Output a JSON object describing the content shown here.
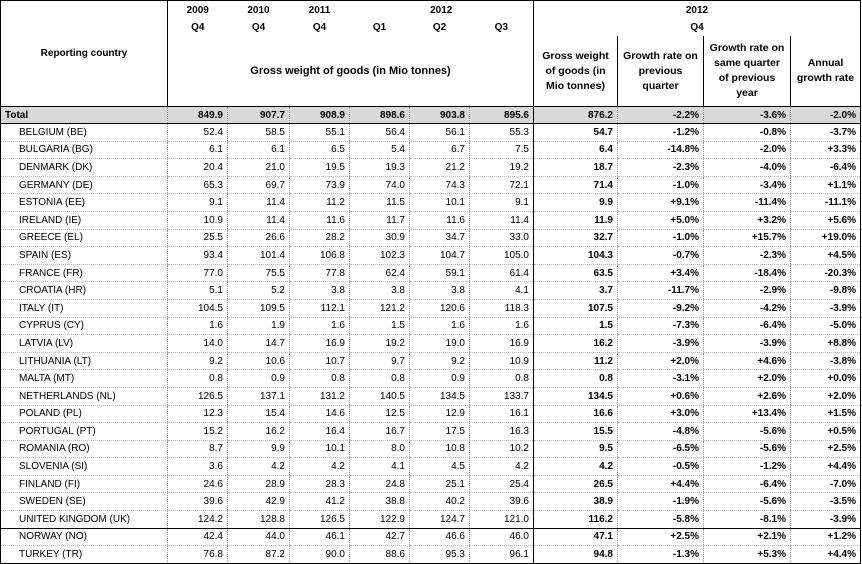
{
  "header": {
    "years": [
      "2009",
      "2010",
      "2011",
      "2012"
    ],
    "quarters": [
      "Q4",
      "Q4",
      "Q4",
      "Q1",
      "Q2",
      "Q3"
    ],
    "year2012b": "2012",
    "q4": "Q4",
    "reporting_country": "Reporting country",
    "gross_weight": "Gross weight of goods (in Mio tonnes)",
    "col_gross": "Gross weight of goods (in Mio tonnes)",
    "col_growth_prev": "Growth rate on previous quarter",
    "col_growth_same": "Growth rate on same quarter of previous year",
    "col_annual": "Annual growth rate"
  },
  "total": {
    "label": "Total",
    "v": [
      "849.9",
      "907.7",
      "908.9",
      "898.6",
      "903.8",
      "895.6",
      "876.2",
      "-2.2%",
      "-3.6%",
      "-2.0%"
    ]
  },
  "rows": [
    {
      "label": "BELGIUM (BE)",
      "v": [
        "52.4",
        "58.5",
        "55.1",
        "56.4",
        "56.1",
        "55.3",
        "54.7",
        "-1.2%",
        "-0.8%",
        "-3.7%"
      ]
    },
    {
      "label": "BULGARIA (BG)",
      "v": [
        "6.1",
        "6.1",
        "6.5",
        "5.4",
        "6.7",
        "7.5",
        "6.4",
        "-14.8%",
        "-2.0%",
        "+3.3%"
      ]
    },
    {
      "label": "DENMARK (DK)",
      "v": [
        "20.4",
        "21.0",
        "19.5",
        "19.3",
        "21.2",
        "19.2",
        "18.7",
        "-2.3%",
        "-4.0%",
        "-6.4%"
      ]
    },
    {
      "label": "GERMANY (DE)",
      "v": [
        "65.3",
        "69.7",
        "73.9",
        "74.0",
        "74.3",
        "72.1",
        "71.4",
        "-1.0%",
        "-3.4%",
        "+1.1%"
      ]
    },
    {
      "label": "ESTONIA (EE)",
      "v": [
        "9.1",
        "11.4",
        "11.2",
        "11.5",
        "10.1",
        "9.1",
        "9.9",
        "+9.1%",
        "-11.4%",
        "-11.1%"
      ]
    },
    {
      "label": "IRELAND (IE)",
      "v": [
        "10.9",
        "11.4",
        "11.6",
        "11.7",
        "11.6",
        "11.4",
        "11.9",
        "+5.0%",
        "+3.2%",
        "+5.6%"
      ]
    },
    {
      "label": "GREECE (EL)",
      "v": [
        "25.5",
        "26.6",
        "28.2",
        "30.9",
        "34.7",
        "33.0",
        "32.7",
        "-1.0%",
        "+15.7%",
        "+19.0%"
      ]
    },
    {
      "label": "SPAIN (ES)",
      "v": [
        "93.4",
        "101.4",
        "106.8",
        "102.3",
        "104.7",
        "105.0",
        "104.3",
        "-0.7%",
        "-2.3%",
        "+4.5%"
      ]
    },
    {
      "label": "FRANCE (FR)",
      "v": [
        "77.0",
        "75.5",
        "77.8",
        "62.4",
        "59.1",
        "61.4",
        "63.5",
        "+3.4%",
        "-18.4%",
        "-20.3%"
      ]
    },
    {
      "label": "CROATIA (HR)",
      "v": [
        "5.1",
        "5.2",
        "3.8",
        "3.8",
        "3.8",
        "4.1",
        "3.7",
        "-11.7%",
        "-2.9%",
        "-9.8%"
      ]
    },
    {
      "label": "ITALY (IT)",
      "v": [
        "104.5",
        "109.5",
        "112.1",
        "121.2",
        "120.6",
        "118.3",
        "107.5",
        "-9.2%",
        "-4.2%",
        "-3.9%"
      ]
    },
    {
      "label": "CYPRUS (CY)",
      "v": [
        "1.6",
        "1.9",
        "1.6",
        "1.5",
        "1.6",
        "1.6",
        "1.5",
        "-7.3%",
        "-6.4%",
        "-5.0%"
      ]
    },
    {
      "label": "LATVIA (LV)",
      "v": [
        "14.0",
        "14.7",
        "16.9",
        "19.2",
        "19.0",
        "16.9",
        "16.2",
        "-3.9%",
        "-3.9%",
        "+8.8%"
      ]
    },
    {
      "label": "LITHUANIA (LT)",
      "v": [
        "9.2",
        "10.6",
        "10.7",
        "9.7",
        "9.2",
        "10.9",
        "11.2",
        "+2.0%",
        "+4.6%",
        "-3.8%"
      ]
    },
    {
      "label": "MALTA (MT)",
      "v": [
        "0.8",
        "0.9",
        "0.8",
        "0.8",
        "0.9",
        "0.8",
        "0.8",
        "-3.1%",
        "+2.0%",
        "+0.0%"
      ]
    },
    {
      "label": "NETHERLANDS (NL)",
      "v": [
        "126.5",
        "137.1",
        "131.2",
        "140.5",
        "134.5",
        "133.7",
        "134.5",
        "+0.6%",
        "+2.6%",
        "+2.0%"
      ]
    },
    {
      "label": "POLAND (PL)",
      "v": [
        "12.3",
        "15.4",
        "14.6",
        "12.5",
        "12.9",
        "16.1",
        "16.6",
        "+3.0%",
        "+13.4%",
        "+1.5%"
      ]
    },
    {
      "label": "PORTUGAL (PT)",
      "v": [
        "15.2",
        "16.2",
        "16.4",
        "16.7",
        "17.5",
        "16.3",
        "15.5",
        "-4.8%",
        "-5.6%",
        "+0.5%"
      ]
    },
    {
      "label": "ROMANIA (RO)",
      "v": [
        "8.7",
        "9.9",
        "10.1",
        "8.0",
        "10.8",
        "10.2",
        "9.5",
        "-6.5%",
        "-5.6%",
        "+2.5%"
      ]
    },
    {
      "label": "SLOVENIA (SI)",
      "v": [
        "3.6",
        "4.2",
        "4.2",
        "4.1",
        "4.5",
        "4.2",
        "4.2",
        "-0.5%",
        "-1.2%",
        "+4.4%"
      ]
    },
    {
      "label": "FINLAND (FI)",
      "v": [
        "24.6",
        "28.9",
        "28.3",
        "24.8",
        "25.1",
        "25.4",
        "26.5",
        "+4.4%",
        "-6.4%",
        "-7.0%"
      ]
    },
    {
      "label": "SWEDEN (SE)",
      "v": [
        "39.6",
        "42.9",
        "41.2",
        "38.8",
        "40.2",
        "39.6",
        "38.9",
        "-1.9%",
        "-5.6%",
        "-3.5%"
      ]
    },
    {
      "label": "UNITED KINGDOM (UK)",
      "v": [
        "124.2",
        "128.8",
        "126.5",
        "122.9",
        "124.7",
        "121.0",
        "116.2",
        "-5.8%",
        "-8.1%",
        "-3.9%"
      ]
    },
    {
      "label": "NORWAY (NO)",
      "v": [
        "42.4",
        "44.0",
        "46.1",
        "42.7",
        "46.6",
        "46.0",
        "47.1",
        "+2.5%",
        "+2.1%",
        "+1.2%"
      ]
    },
    {
      "label": "TURKEY (TR)",
      "v": [
        "76.8",
        "87.2",
        "90.0",
        "88.6",
        "95.3",
        "96.1",
        "94.8",
        "-1.3%",
        "+5.3%",
        "+4.4%"
      ]
    }
  ]
}
